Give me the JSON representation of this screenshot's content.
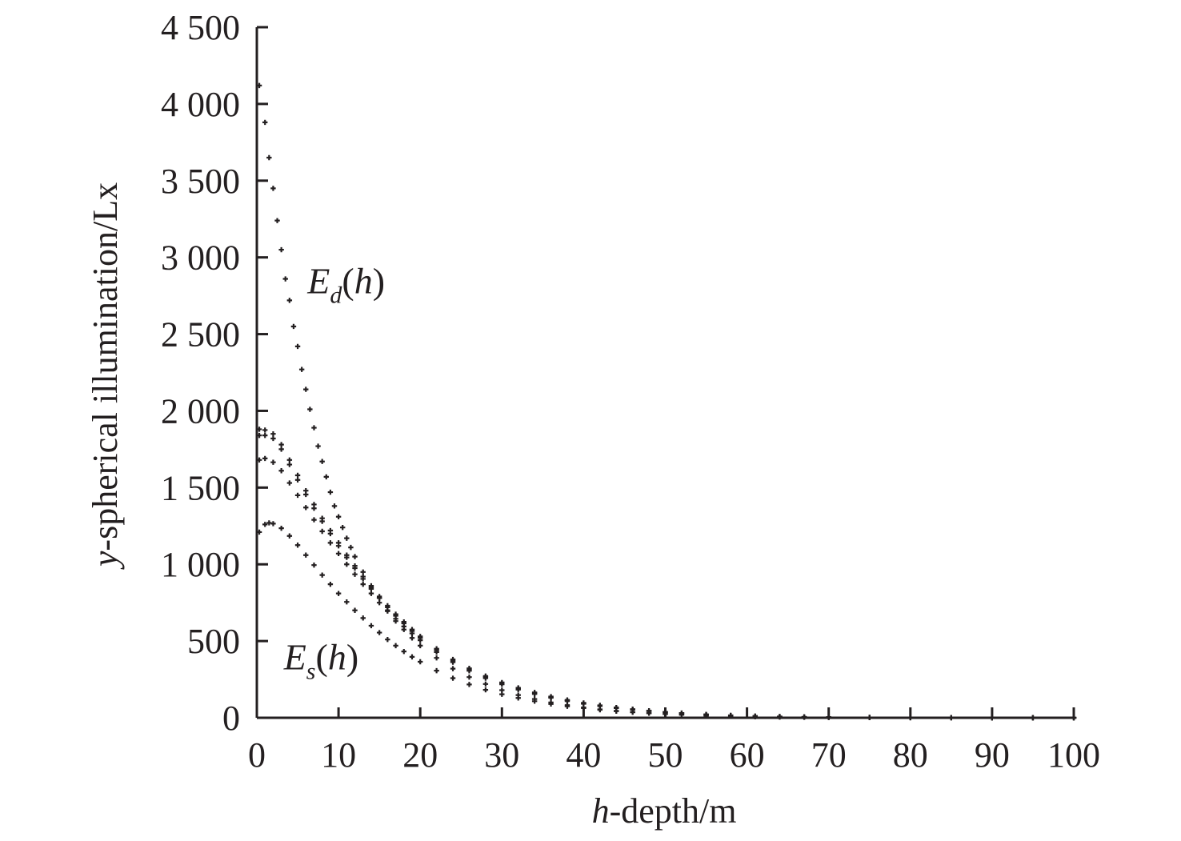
{
  "chart_data": {
    "type": "scatter",
    "xlabel": "h-depth/m",
    "ylabel": "y-spherical illumination/Lx",
    "xlabel_italic": "h",
    "xlabel_rest": "-depth/m",
    "ylabel_italic": "y",
    "ylabel_rest": "-spherical illumination/Lx",
    "xlim": [
      0,
      100
    ],
    "ylim": [
      0,
      4500
    ],
    "xticks": [
      0,
      10,
      20,
      30,
      40,
      50,
      60,
      70,
      80,
      90,
      100
    ],
    "xtick_labels": [
      "0",
      "10",
      "20",
      "30",
      "40",
      "50",
      "60",
      "70",
      "80",
      "90",
      "100"
    ],
    "yticks": [
      0,
      500,
      1000,
      1500,
      2000,
      2500,
      3000,
      3500,
      4000,
      4500
    ],
    "ytick_labels": [
      "0",
      "500",
      "1 000",
      "1 500",
      "2 000",
      "2 500",
      "3 000",
      "3 500",
      "4 000",
      "4 500"
    ],
    "grid": false,
    "marker": "+",
    "marker_color": "#231f20",
    "annotations": [
      {
        "base": "E",
        "sub": "d",
        "rest": "(h)",
        "x": 6.2,
        "y": 2850,
        "series": "Ed"
      },
      {
        "base": "E",
        "sub": "s",
        "rest": "(h)",
        "x": 3.3,
        "y": 400,
        "series": "Es"
      }
    ],
    "series": [
      {
        "id": "Ed",
        "x": [
          0.3,
          1.0,
          1.5,
          2.0,
          2.5,
          3.0,
          3.5,
          4.0,
          4.5,
          5.0,
          5.5,
          6.0,
          6.5,
          7.0,
          7.5,
          8.0,
          8.5,
          9.0,
          9.5,
          10.0,
          10.5,
          11.0,
          11.5,
          12.0,
          13.0,
          14.0,
          15.0,
          16.0,
          17.0,
          18.0,
          19.0,
          20.0,
          22.0,
          24.0,
          26.0,
          28.0,
          30.0,
          32.0,
          34.0,
          36.0,
          38.0,
          40.0,
          42.0,
          44.0,
          46.0,
          48.0,
          50.0,
          52.0,
          55.0,
          58.0,
          61.0,
          64.0,
          67.0,
          70.0,
          75.0,
          80.0,
          85.0,
          90.0,
          95.0,
          100.0
        ],
        "y": [
          4120,
          3880,
          3650,
          3450,
          3240,
          3050,
          2860,
          2720,
          2550,
          2420,
          2270,
          2140,
          2010,
          1890,
          1770,
          1670,
          1570,
          1470,
          1380,
          1310,
          1240,
          1170,
          1110,
          1050,
          950,
          860,
          780,
          700,
          630,
          575,
          520,
          470,
          390,
          320,
          265,
          220,
          180,
          148,
          122,
          100,
          82,
          67,
          55,
          45,
          37,
          30,
          24,
          20,
          14,
          10,
          7,
          5,
          4,
          3,
          2,
          1,
          1,
          0,
          0,
          0
        ]
      },
      {
        "id": "Es-1",
        "x": [
          0.3,
          1.0,
          2.0,
          3.0,
          4.0,
          5.0,
          6.0,
          7.0,
          8.0,
          9.0,
          10.0,
          11.0,
          12.0,
          13.0,
          14.0,
          15.0,
          16.0,
          17.0,
          18.0,
          19.0,
          20.0,
          22.0,
          24.0,
          26.0,
          28.0,
          30.0,
          32.0,
          34.0,
          36.0,
          38.0,
          40.0,
          42.0,
          44.0,
          46.0,
          48.0,
          50.0,
          52.0,
          55.0,
          58.0,
          61.0,
          64.0,
          67.0,
          70.0,
          75.0,
          80.0,
          85.0,
          90.0,
          95.0,
          100.0
        ],
        "y": [
          1880,
          1875,
          1850,
          1780,
          1680,
          1580,
          1480,
          1390,
          1300,
          1220,
          1140,
          1060,
          990,
          920,
          850,
          790,
          730,
          675,
          625,
          575,
          530,
          450,
          380,
          322,
          272,
          230,
          195,
          165,
          138,
          116,
          97,
          81,
          67,
          56,
          46,
          38,
          31,
          22,
          16,
          11,
          8,
          6,
          4,
          2,
          1,
          1,
          0,
          0,
          0
        ]
      },
      {
        "id": "Es-2",
        "x": [
          0.3,
          1.0,
          2.0,
          3.0,
          4.0,
          5.0,
          6.0,
          7.0,
          8.0,
          9.0,
          10.0,
          11.0,
          12.0,
          13.0,
          14.0,
          15.0,
          16.0,
          17.0,
          18.0,
          19.0,
          20.0,
          22.0,
          24.0,
          26.0,
          28.0,
          30.0,
          32.0,
          34.0,
          36.0,
          38.0,
          40.0,
          42.0,
          44.0,
          46.0,
          48.0,
          50.0,
          52.0,
          55.0,
          58.0,
          61.0,
          64.0,
          67.0,
          70.0,
          75.0,
          80.0,
          85.0,
          90.0,
          95.0,
          100.0
        ],
        "y": [
          1840,
          1840,
          1820,
          1750,
          1650,
          1550,
          1455,
          1365,
          1280,
          1200,
          1120,
          1045,
          975,
          905,
          840,
          780,
          720,
          665,
          615,
          565,
          520,
          440,
          372,
          315,
          266,
          225,
          190,
          160,
          134,
          113,
          94,
          79,
          65,
          54,
          45,
          37,
          30,
          21,
          15,
          11,
          8,
          5,
          4,
          2,
          1,
          1,
          0,
          0,
          0
        ]
      },
      {
        "id": "Es-3",
        "x": [
          0.3,
          1.0,
          2.0,
          3.0,
          4.0,
          5.0,
          6.0,
          7.0,
          8.0,
          9.0,
          10.0,
          11.0,
          12.0,
          13.0,
          14.0,
          15.0,
          16.0,
          17.0,
          18.0,
          19.0,
          20.0,
          22.0,
          24.0,
          26.0,
          28.0,
          30.0,
          32.0,
          34.0,
          36.0,
          38.0,
          40.0,
          42.0,
          44.0,
          46.0,
          48.0,
          50.0,
          52.0,
          55.0,
          58.0,
          61.0,
          64.0,
          67.0,
          70.0,
          75.0,
          80.0,
          85.0,
          90.0,
          95.0,
          100.0
        ],
        "y": [
          1680,
          1690,
          1665,
          1610,
          1530,
          1450,
          1370,
          1290,
          1215,
          1140,
          1070,
          1000,
          935,
          870,
          810,
          750,
          695,
          645,
          595,
          550,
          505,
          428,
          362,
          306,
          258,
          218,
          184,
          155,
          130,
          109,
          91,
          76,
          63,
          52,
          43,
          35,
          29,
          20,
          14,
          10,
          7,
          5,
          3,
          2,
          1,
          0,
          0,
          0,
          0
        ]
      },
      {
        "id": "Es-4",
        "x": [
          0.3,
          1.0,
          1.5,
          2.0,
          3.0,
          4.0,
          5.0,
          6.0,
          7.0,
          8.0,
          9.0,
          10.0,
          11.0,
          12.0,
          13.0,
          14.0,
          15.0,
          16.0,
          17.0,
          18.0,
          19.0,
          20.0,
          22.0,
          24.0,
          26.0,
          28.0,
          30.0,
          32.0,
          34.0,
          36.0,
          38.0,
          40.0,
          42.0,
          44.0,
          46.0,
          48.0,
          50.0,
          52.0,
          55.0,
          58.0,
          61.0,
          64.0,
          67.0,
          70.0,
          75.0,
          80.0,
          85.0,
          90.0,
          95.0,
          100.0
        ],
        "y": [
          1210,
          1260,
          1270,
          1265,
          1235,
          1185,
          1125,
          1060,
          995,
          930,
          870,
          810,
          755,
          700,
          650,
          600,
          555,
          510,
          470,
          432,
          397,
          365,
          307,
          258,
          217,
          182,
          153,
          129,
          108,
          90,
          75,
          63,
          52,
          43,
          36,
          30,
          24,
          20,
          14,
          10,
          7,
          5,
          3,
          2,
          1,
          0,
          0,
          0,
          0,
          0
        ]
      }
    ]
  }
}
